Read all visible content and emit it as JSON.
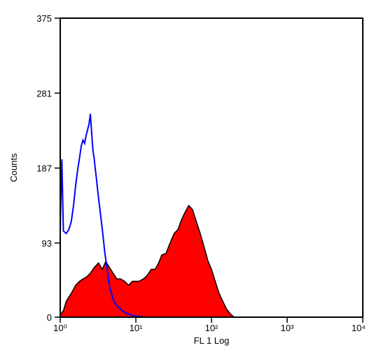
{
  "chart_data": {
    "type": "area",
    "xlabel": "FL 1 Log",
    "ylabel": "Counts",
    "x_scale": "log",
    "xlim": [
      1,
      10000
    ],
    "ylim": [
      0,
      375
    ],
    "x_ticks": [
      {
        "value": 1,
        "label": "10⁰"
      },
      {
        "value": 10,
        "label": "10¹"
      },
      {
        "value": 100,
        "label": "10²"
      },
      {
        "value": 1000,
        "label": "10³"
      },
      {
        "value": 10000,
        "label": "10⁴"
      }
    ],
    "y_ticks": [
      {
        "value": 0,
        "label": "0"
      },
      {
        "value": 93,
        "label": "93"
      },
      {
        "value": 187,
        "label": "187"
      },
      {
        "value": 281,
        "label": "281"
      },
      {
        "value": 375,
        "label": "375"
      }
    ],
    "grid": false,
    "series": [
      {
        "style": "filled",
        "fill_color": "#ff0000",
        "stroke_color": "#000000",
        "x": [
          1.0,
          1.1,
          1.2,
          1.4,
          1.6,
          1.8,
          2.0,
          2.2,
          2.5,
          2.8,
          3.2,
          3.6,
          4.0,
          4.5,
          5.0,
          5.6,
          6.3,
          7.1,
          8.0,
          9.0,
          10,
          11,
          12.6,
          14,
          16,
          18,
          20,
          22,
          25,
          28,
          32,
          36,
          40,
          45,
          50,
          56,
          63,
          71,
          80,
          90,
          100,
          112,
          126,
          141,
          158,
          178,
          200
        ],
        "y": [
          3,
          8,
          20,
          30,
          40,
          45,
          48,
          50,
          55,
          62,
          68,
          60,
          70,
          62,
          55,
          48,
          48,
          45,
          40,
          45,
          45,
          45,
          48,
          52,
          60,
          60,
          68,
          78,
          80,
          92,
          105,
          110,
          122,
          132,
          140,
          135,
          120,
          105,
          88,
          70,
          60,
          45,
          30,
          20,
          10,
          4,
          0
        ]
      },
      {
        "style": "line",
        "stroke_color": "#0000ff",
        "x": [
          1.0,
          1.05,
          1.1,
          1.2,
          1.3,
          1.4,
          1.5,
          1.6,
          1.7,
          1.8,
          1.9,
          2.0,
          2.1,
          2.2,
          2.4,
          2.5,
          2.6,
          2.7,
          2.8,
          3.0,
          3.2,
          3.4,
          3.6,
          3.9,
          4.2,
          4.5,
          5.0,
          5.6,
          6.3,
          7.1,
          8.0,
          9.0,
          10,
          11,
          12.6
        ],
        "y": [
          108,
          198,
          108,
          105,
          110,
          120,
          140,
          165,
          185,
          200,
          215,
          222,
          218,
          228,
          242,
          255,
          232,
          210,
          200,
          175,
          150,
          130,
          110,
          80,
          58,
          38,
          22,
          14,
          10,
          6,
          4,
          2,
          1,
          1,
          0
        ]
      }
    ]
  }
}
